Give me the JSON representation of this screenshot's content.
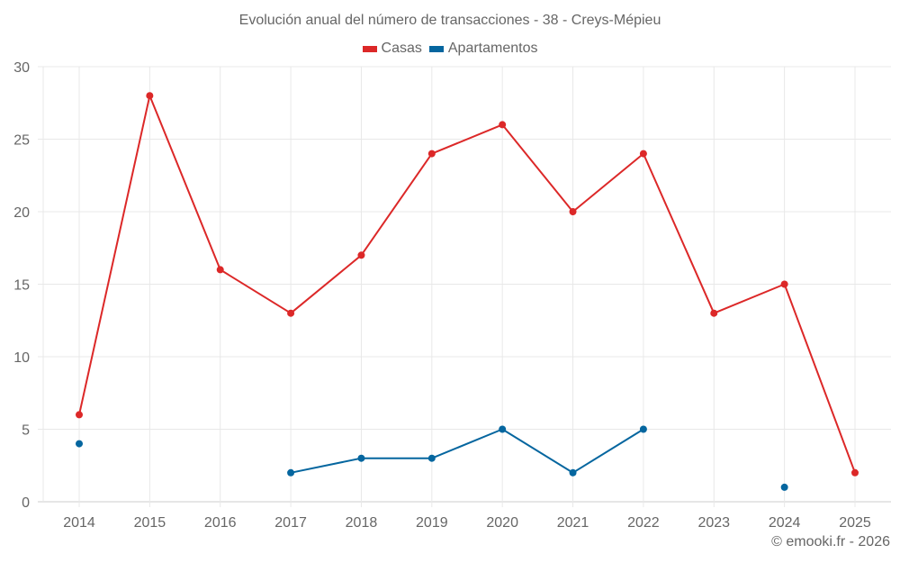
{
  "title": "Evolución anual del número de transacciones - 38 - Creys-Mépieu",
  "legend": [
    {
      "label": "Casas",
      "color": "#dc2828"
    },
    {
      "label": "Apartamentos",
      "color": "#05669f"
    }
  ],
  "credit": "© emooki.fr - 2026",
  "chart_data": {
    "type": "line",
    "title": "Evolución anual del número de transacciones - 38 - Creys-Mépieu",
    "xlabel": "",
    "ylabel": "",
    "categories": [
      "2014",
      "2015",
      "2016",
      "2017",
      "2018",
      "2019",
      "2020",
      "2021",
      "2022",
      "2023",
      "2024",
      "2025"
    ],
    "series": [
      {
        "name": "Casas",
        "color": "#dc2828",
        "values": [
          6,
          28,
          16,
          13,
          17,
          24,
          26,
          20,
          24,
          13,
          15,
          2
        ]
      },
      {
        "name": "Apartamentos",
        "color": "#05669f",
        "values": [
          4,
          null,
          null,
          2,
          3,
          3,
          5,
          2,
          5,
          null,
          1,
          null
        ]
      }
    ],
    "ylim": [
      0,
      30
    ],
    "yticks": [
      0,
      5,
      10,
      15,
      20,
      25,
      30
    ],
    "grid": true,
    "legend_position": "top"
  }
}
